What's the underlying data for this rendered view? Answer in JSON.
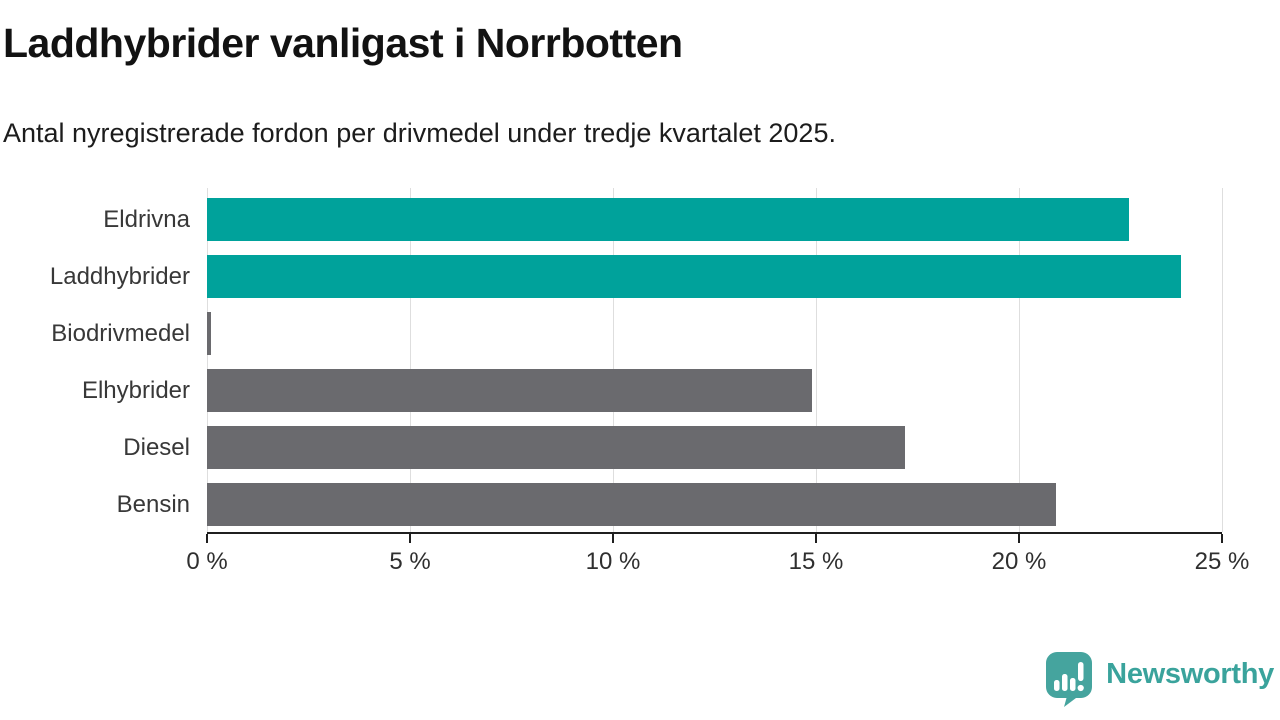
{
  "header": {
    "title": "Laddhybrider vanligast i Norrbotten",
    "subtitle": "Antal nyregistrerade fordon per drivmedel under tredje kvartalet 2025."
  },
  "chart_data": {
    "type": "bar",
    "orientation": "horizontal",
    "title": "Laddhybrider vanligast i Norrbotten",
    "subtitle": "Antal nyregistrerade fordon per drivmedel under tredje kvartalet 2025.",
    "categories": [
      "Eldrivna",
      "Laddhybrider",
      "Biodrivmedel",
      "Elhybrider",
      "Diesel",
      "Bensin"
    ],
    "values": [
      22.7,
      24.0,
      0.1,
      14.9,
      17.2,
      20.9
    ],
    "unit": "%",
    "bar_colors": [
      "#00a29b",
      "#00a29b",
      "#6a6a6e",
      "#6a6a6e",
      "#6a6a6e",
      "#6a6a6e"
    ],
    "xlim": [
      0,
      25
    ],
    "x_ticks": [
      0,
      5,
      10,
      15,
      20,
      25
    ],
    "x_tick_labels": [
      "0 %",
      "5 %",
      "10 %",
      "15 %",
      "20 %",
      "25 %"
    ],
    "grid": true,
    "legend": "none"
  },
  "colors": {
    "accent_teal": "#00a29b",
    "neutral_gray": "#6a6a6e",
    "gridline": "#dedede",
    "axis": "#1f1f1f",
    "logo_teal": "#45a49e"
  },
  "footer": {
    "brand": "Newsworthy",
    "logo_icon": "speech-bubble-bar-chart"
  }
}
